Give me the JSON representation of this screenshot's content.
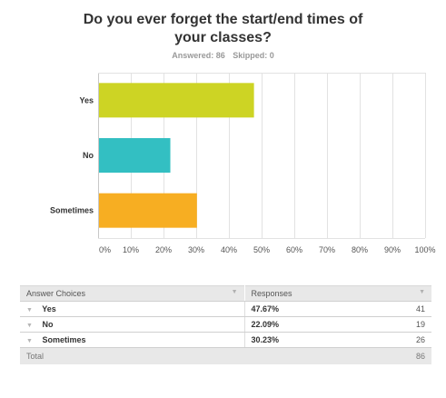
{
  "question": {
    "title_line1": "Do you ever forget the start/end times of",
    "title_line2": "your classes?",
    "answered": "Answered: 86",
    "skipped": "Skipped: 0"
  },
  "chart_data": {
    "type": "bar",
    "orientation": "horizontal",
    "categories": [
      "Yes",
      "No",
      "Sometimes"
    ],
    "values": [
      47.67,
      22.09,
      30.23
    ],
    "colors": [
      "#cdd424",
      "#33bfc2",
      "#f7ae22"
    ],
    "xlim": [
      0,
      100
    ],
    "x_ticks": [
      "0%",
      "10%",
      "20%",
      "30%",
      "40%",
      "50%",
      "60%",
      "70%",
      "80%",
      "90%",
      "100%"
    ],
    "grid": true,
    "title": "",
    "xlabel": "",
    "ylabel": ""
  },
  "table": {
    "headers": {
      "choices": "Answer Choices",
      "responses": "Responses"
    },
    "rows": [
      {
        "choice": "Yes",
        "percent": "47.67%",
        "count": "41"
      },
      {
        "choice": "No",
        "percent": "22.09%",
        "count": "19"
      },
      {
        "choice": "Sometimes",
        "percent": "30.23%",
        "count": "26"
      }
    ],
    "total_label": "Total",
    "total_count": "86"
  }
}
